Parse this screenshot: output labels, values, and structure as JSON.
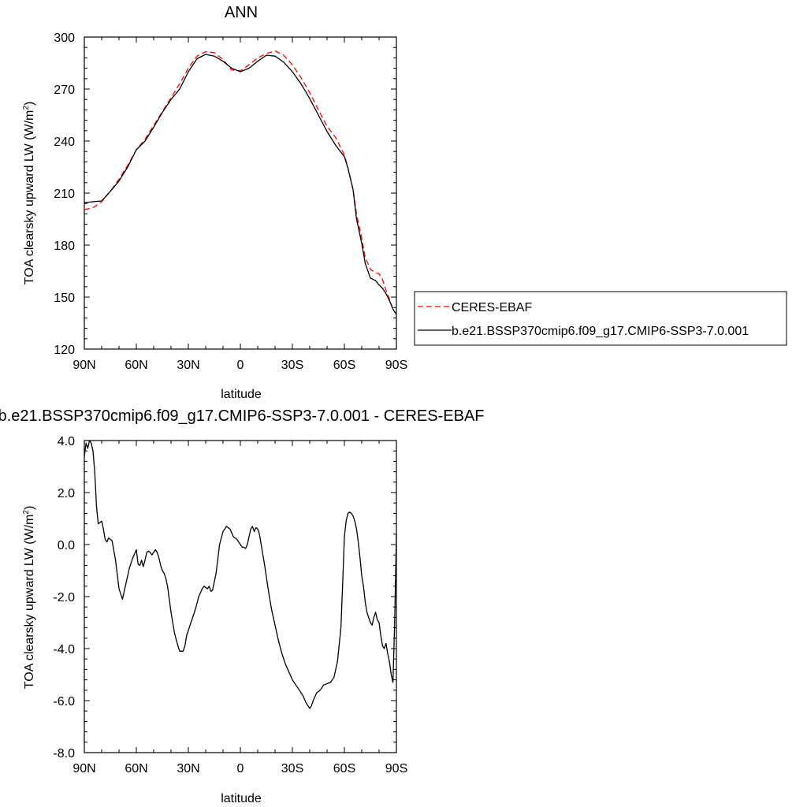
{
  "chart_data": [
    {
      "type": "line",
      "title": "ANN",
      "xlabel": "latitude",
      "ylabel": "TOA clearsky upward LW (W/m",
      "ylabel_sup": "2",
      "ylabel_close": ")",
      "xlim": [
        90,
        -90
      ],
      "ylim": [
        120,
        300
      ],
      "xticks": [
        90,
        60,
        30,
        0,
        -30,
        -60,
        -90
      ],
      "xtick_labels": [
        "90N",
        "60N",
        "30N",
        "0",
        "30S",
        "60S",
        "90S"
      ],
      "yticks": [
        120,
        150,
        180,
        210,
        240,
        270,
        300
      ],
      "ytick_labels": [
        "120",
        "150",
        "180",
        "210",
        "240",
        "270",
        "300"
      ],
      "grid": false,
      "legend_position": "right",
      "legend": [
        {
          "name": "CERES-EBAF",
          "color": "#ff0000",
          "dash": "dashed"
        },
        {
          "name": "b.e21.BSSP370cmip6.f09_g17.CMIP6-SSP3-7.0.001",
          "color": "#000000",
          "dash": "solid"
        }
      ],
      "series": [
        {
          "name": "CERES-EBAF",
          "color": "#ff0000",
          "dash": "dashed",
          "x": [
            90,
            85,
            80,
            75,
            70,
            65,
            60,
            55,
            50,
            45,
            40,
            35,
            30,
            25,
            20,
            15,
            10,
            5,
            0,
            -5,
            -10,
            -15,
            -20,
            -25,
            -30,
            -35,
            -40,
            -45,
            -50,
            -55,
            -60,
            -62,
            -65,
            -67,
            -70,
            -72,
            -75,
            -78,
            -80,
            -82,
            -84,
            -86,
            -88,
            -90
          ],
          "y": [
            200.5,
            201.5,
            205,
            211,
            218,
            226,
            235,
            241,
            249,
            257,
            265,
            273,
            282,
            289,
            291.5,
            291,
            287,
            281,
            280.5,
            284,
            288,
            290.5,
            292,
            289.5,
            284,
            276.5,
            268,
            258,
            248.5,
            242,
            232,
            225,
            212,
            198,
            184,
            173,
            166,
            164,
            163.5,
            160,
            154,
            149,
            143,
            140
          ]
        },
        {
          "name": "b.e21.BSSP370cmip6.f09_g17.CMIP6-SSP3-7.0.001",
          "color": "#000000",
          "dash": "solid",
          "x": [
            90,
            85,
            80,
            75,
            70,
            65,
            60,
            55,
            50,
            45,
            40,
            35,
            30,
            25,
            20,
            15,
            10,
            5,
            0,
            -5,
            -10,
            -15,
            -20,
            -25,
            -30,
            -35,
            -40,
            -45,
            -50,
            -55,
            -60,
            -62,
            -65,
            -67,
            -70,
            -72,
            -75,
            -78,
            -80,
            -82,
            -84,
            -86,
            -88,
            -90
          ],
          "y": [
            204.5,
            205,
            205.5,
            211,
            217,
            225,
            235,
            240,
            248,
            256.5,
            264,
            270,
            280,
            287.5,
            290,
            289,
            286,
            282,
            280,
            282,
            286,
            289.5,
            289,
            285.5,
            280,
            273,
            264.5,
            255,
            245.5,
            237.5,
            231,
            224.5,
            212,
            195,
            181,
            169.5,
            161,
            159.5,
            157,
            155,
            152,
            148,
            143,
            140
          ]
        }
      ]
    },
    {
      "type": "line",
      "title": "b.e21.BSSP370cmip6.f09_g17.CMIP6-SSP3-7.0.001 - CERES-EBAF",
      "xlabel": "latitude",
      "ylabel": "TOA clearsky upward LW (W/m",
      "ylabel_sup": "2",
      "ylabel_close": ")",
      "xlim": [
        90,
        -90
      ],
      "ylim": [
        -8,
        4
      ],
      "xticks": [
        90,
        60,
        30,
        0,
        -30,
        -60,
        -90
      ],
      "xtick_labels": [
        "90N",
        "60N",
        "30N",
        "0",
        "30S",
        "60S",
        "90S"
      ],
      "yticks": [
        -8,
        -6,
        -4,
        -2,
        0,
        2,
        4
      ],
      "ytick_labels": [
        "-8.0",
        "-6.0",
        "-4.0",
        "-2.0",
        "0.0",
        "2.0",
        "4.0"
      ],
      "grid": false,
      "series": [
        {
          "name": "",
          "color": "#000000",
          "dash": "solid",
          "x": [
            90,
            89,
            88,
            87,
            86,
            85,
            84,
            83,
            82,
            81,
            80,
            79,
            78,
            77,
            76,
            75,
            74,
            72,
            70,
            68,
            66,
            64,
            62,
            60,
            59,
            58,
            57,
            56,
            55,
            54,
            53,
            52,
            51,
            50,
            49,
            48,
            47,
            46,
            45,
            44,
            43,
            42,
            41,
            40,
            38,
            36,
            35,
            34,
            33,
            32,
            31,
            30,
            28,
            26,
            24,
            22,
            21,
            20,
            19,
            18,
            17,
            16,
            14,
            12,
            10,
            8,
            6,
            4,
            2,
            0,
            -1,
            -2,
            -3,
            -4,
            -5,
            -6,
            -7,
            -8,
            -9,
            -10,
            -11,
            -12,
            -14,
            -16,
            -18,
            -20,
            -22,
            -24,
            -26,
            -28,
            -30,
            -32,
            -34,
            -36,
            -38,
            -40,
            -41,
            -42,
            -44,
            -46,
            -48,
            -50,
            -52,
            -54,
            -56,
            -58,
            -59,
            -60,
            -61,
            -62,
            -63,
            -64,
            -65,
            -66,
            -67,
            -68,
            -69,
            -70,
            -71,
            -72,
            -73,
            -74,
            -75,
            -76,
            -77,
            -78,
            -79,
            -80,
            -81,
            -82,
            -83,
            -84,
            -85,
            -86,
            -87,
            -88,
            -89,
            -90
          ],
          "y": [
            3.4,
            3.9,
            3.7,
            4.0,
            3.9,
            3.6,
            2.8,
            1.5,
            0.8,
            0.85,
            0.9,
            0.6,
            0.2,
            0.1,
            0.25,
            0.2,
            0.15,
            -0.6,
            -1.7,
            -2.1,
            -1.5,
            -0.9,
            -0.5,
            -0.2,
            -0.75,
            -0.8,
            -0.6,
            -0.85,
            -0.6,
            -0.3,
            -0.25,
            -0.3,
            -0.4,
            -0.3,
            -0.2,
            -0.3,
            -0.5,
            -0.8,
            -1.0,
            -1.1,
            -1.3,
            -1.6,
            -2.1,
            -2.6,
            -3.4,
            -3.9,
            -4.1,
            -4.1,
            -4.1,
            -3.9,
            -3.5,
            -3.3,
            -2.9,
            -2.5,
            -2.0,
            -1.7,
            -1.6,
            -1.65,
            -1.7,
            -1.6,
            -1.8,
            -1.75,
            -1.1,
            0.0,
            0.5,
            0.7,
            0.6,
            0.3,
            0.2,
            0.0,
            -0.1,
            -0.1,
            -0.15,
            0.0,
            0.3,
            0.6,
            0.7,
            0.5,
            0.65,
            0.6,
            0.4,
            0.0,
            -0.8,
            -1.7,
            -2.5,
            -3.1,
            -3.7,
            -4.2,
            -4.6,
            -4.9,
            -5.2,
            -5.4,
            -5.6,
            -5.8,
            -6.1,
            -6.3,
            -6.2,
            -6.0,
            -5.7,
            -5.6,
            -5.4,
            -5.35,
            -5.3,
            -5.1,
            -4.5,
            -3.2,
            -1.5,
            0.3,
            0.9,
            1.2,
            1.25,
            1.2,
            1.1,
            0.9,
            0.6,
            0.1,
            -0.5,
            -1.2,
            -1.6,
            -2.2,
            -2.6,
            -2.8,
            -3.0,
            -3.1,
            -2.8,
            -2.6,
            -2.9,
            -3.0,
            -3.5,
            -3.9,
            -4.0,
            -3.8,
            -4.2,
            -4.5,
            -5.0,
            -5.3,
            -3.0,
            0.4
          ]
        }
      ]
    }
  ]
}
